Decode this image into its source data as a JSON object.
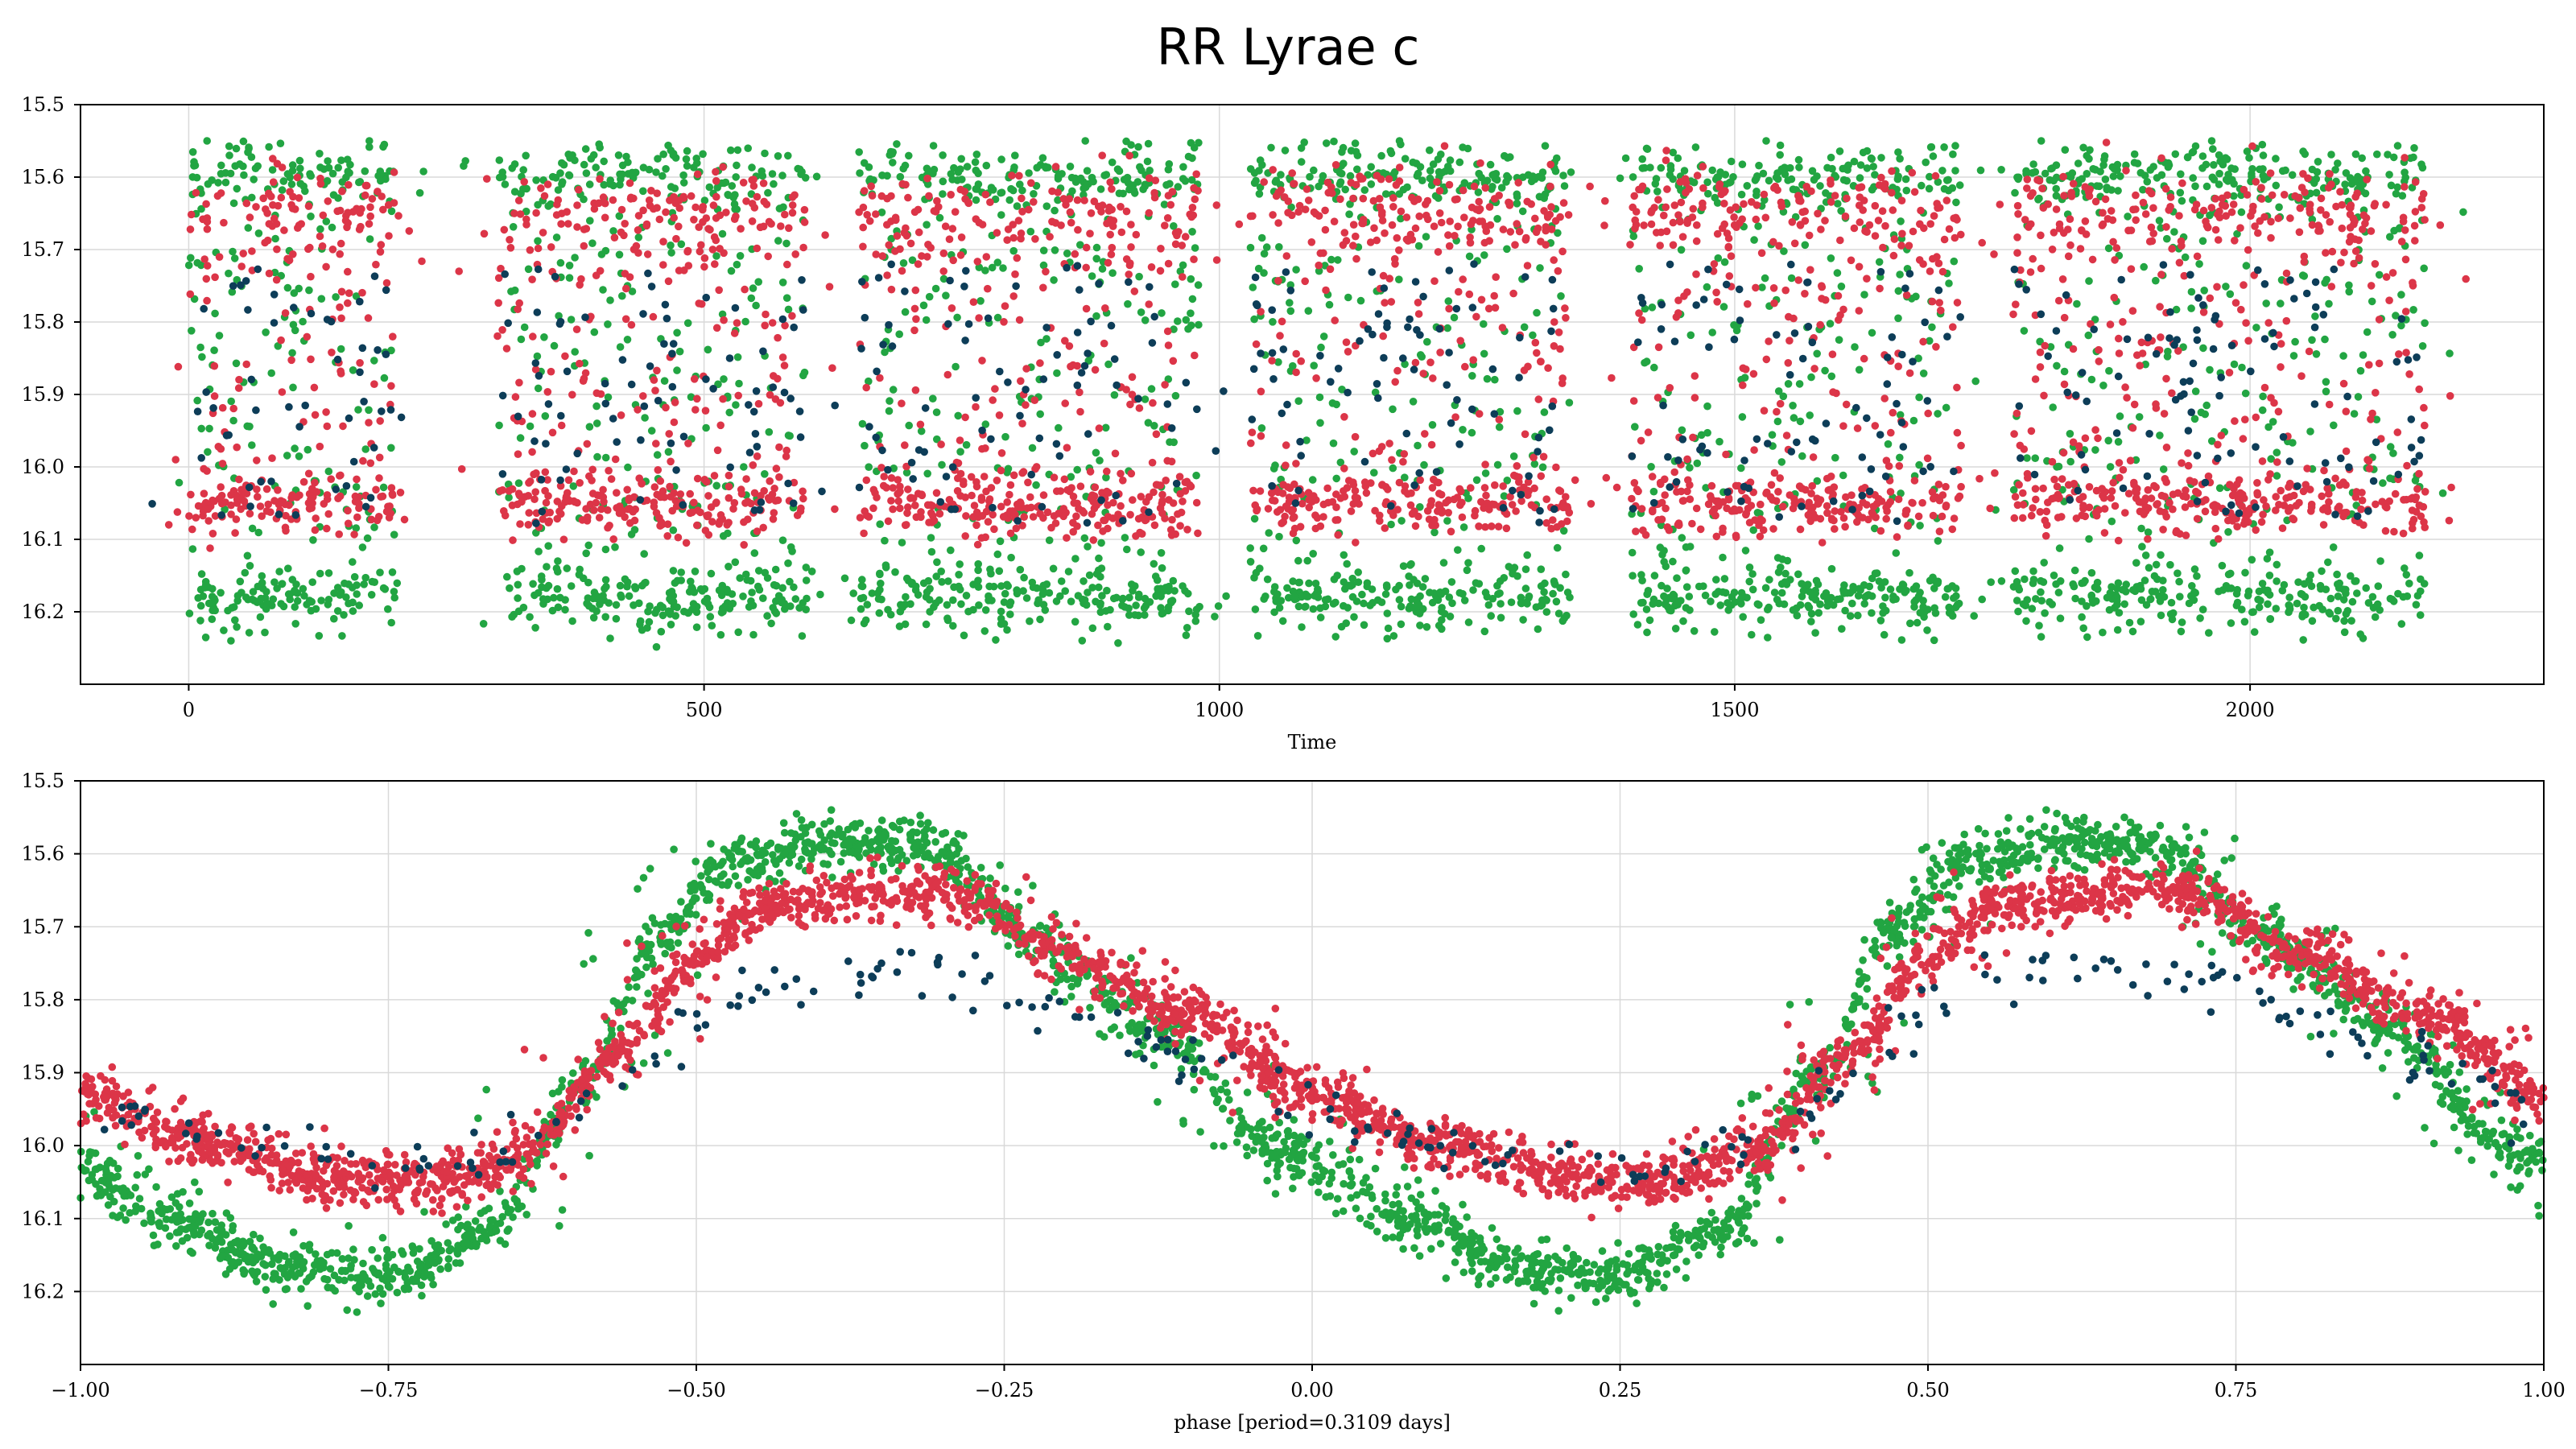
{
  "title": "RR Lyrae c",
  "colors": {
    "green": "#22a542",
    "red": "#dc3548",
    "navy": "#0d3d58"
  },
  "chart_data": [
    {
      "type": "scatter",
      "subplot": "top",
      "xlabel": "Time",
      "ylabel": "",
      "xlim": [
        -105,
        2285
      ],
      "ylim": [
        16.3,
        15.5
      ],
      "y_inverted": true,
      "grid": true,
      "x_ticks": [
        0,
        500,
        1000,
        1500,
        2000
      ],
      "y_ticks": [
        15.5,
        15.6,
        15.7,
        15.8,
        15.9,
        16.0,
        16.1,
        16.2
      ],
      "x_tick_labels": [
        "0",
        "500",
        "1000",
        "1500",
        "2000"
      ],
      "y_tick_labels": [
        "15.5",
        "15.6",
        "15.7",
        "15.8",
        "15.9",
        "16.0",
        "16.1",
        "16.2"
      ],
      "observing_seasons": [
        {
          "x": [
            0,
            200
          ]
        },
        {
          "x": [
            300,
            600
          ]
        },
        {
          "x": [
            650,
            980
          ]
        },
        {
          "x": [
            1030,
            1340
          ]
        },
        {
          "x": [
            1400,
            1720
          ]
        },
        {
          "x": [
            1770,
            2170
          ]
        }
      ],
      "series": [
        {
          "color_key": "green",
          "mag_range": [
            15.55,
            16.24
          ]
        },
        {
          "color_key": "red",
          "mag_range": [
            15.6,
            16.1
          ]
        },
        {
          "color_key": "navy",
          "mag_range": [
            15.72,
            16.08
          ]
        }
      ]
    },
    {
      "type": "scatter",
      "subplot": "bottom",
      "xlabel": "phase [period=0.3109 days]",
      "ylabel": "",
      "xlim": [
        -1.0,
        1.0
      ],
      "ylim": [
        16.3,
        15.5
      ],
      "y_inverted": true,
      "grid": true,
      "x_ticks": [
        -1.0,
        -0.75,
        -0.5,
        -0.25,
        0.0,
        0.25,
        0.5,
        0.75,
        1.0
      ],
      "y_ticks": [
        15.5,
        15.6,
        15.7,
        15.8,
        15.9,
        16.0,
        16.1,
        16.2
      ],
      "x_tick_labels": [
        "−1.00",
        "−0.75",
        "−0.50",
        "−0.25",
        "0.00",
        "0.25",
        "0.50",
        "0.75",
        "1.00"
      ],
      "y_tick_labels": [
        "15.5",
        "15.6",
        "15.7",
        "15.8",
        "15.9",
        "16.0",
        "16.1",
        "16.2"
      ],
      "period_days": 0.3109,
      "series": [
        {
          "color_key": "green",
          "mag_min": 15.58,
          "mag_max": 16.18
        },
        {
          "color_key": "red",
          "mag_min": 15.65,
          "mag_max": 16.05
        },
        {
          "color_key": "navy",
          "mag_min": 15.76,
          "mag_max": 16.03
        }
      ]
    }
  ]
}
